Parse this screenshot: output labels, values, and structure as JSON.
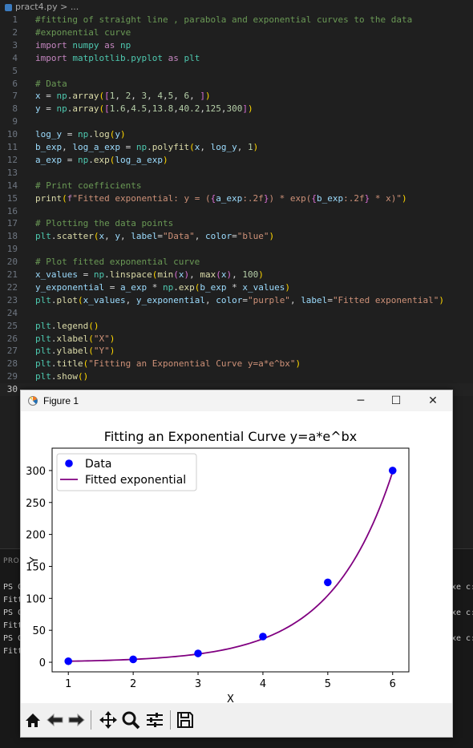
{
  "breadcrumb": {
    "file": "pract4.py",
    "sep": " > ",
    "rest": "..."
  },
  "editor": {
    "active_line": 30,
    "lines": [
      [
        [
          "cm",
          "#fitting of straight line , parabola and exponential curves to the data"
        ]
      ],
      [
        [
          "cm",
          "#exponential curve"
        ]
      ],
      [
        [
          "kw",
          "import "
        ],
        [
          "cls",
          "numpy"
        ],
        [
          "kw",
          " as "
        ],
        [
          "cls",
          "np"
        ]
      ],
      [
        [
          "kw",
          "import "
        ],
        [
          "cls",
          "matplotlib.pyplot"
        ],
        [
          "kw",
          " as "
        ],
        [
          "cls",
          "plt"
        ]
      ],
      [],
      [
        [
          "cm",
          "# Data"
        ]
      ],
      [
        [
          "id",
          "x"
        ],
        [
          "op",
          " = "
        ],
        [
          "cls",
          "np"
        ],
        [
          "op",
          "."
        ],
        [
          "fn",
          "array"
        ],
        [
          "br",
          "("
        ],
        [
          "br2",
          "["
        ],
        [
          "num",
          "1"
        ],
        [
          "op",
          ", "
        ],
        [
          "num",
          "2"
        ],
        [
          "op",
          ", "
        ],
        [
          "num",
          "3"
        ],
        [
          "op",
          ", "
        ],
        [
          "num",
          "4"
        ],
        [
          "op",
          ","
        ],
        [
          "num",
          "5"
        ],
        [
          "op",
          ", "
        ],
        [
          "num",
          "6"
        ],
        [
          "op",
          ", "
        ],
        [
          "br2",
          "]"
        ],
        [
          "br",
          ")"
        ]
      ],
      [
        [
          "id",
          "y"
        ],
        [
          "op",
          " = "
        ],
        [
          "cls",
          "np"
        ],
        [
          "op",
          "."
        ],
        [
          "fn",
          "array"
        ],
        [
          "br",
          "("
        ],
        [
          "br2",
          "["
        ],
        [
          "num",
          "1.6"
        ],
        [
          "op",
          ","
        ],
        [
          "num",
          "4.5"
        ],
        [
          "op",
          ","
        ],
        [
          "num",
          "13.8"
        ],
        [
          "op",
          ","
        ],
        [
          "num",
          "40.2"
        ],
        [
          "op",
          ","
        ],
        [
          "num",
          "125"
        ],
        [
          "op",
          ","
        ],
        [
          "num",
          "300"
        ],
        [
          "br2",
          "]"
        ],
        [
          "br",
          ")"
        ]
      ],
      [],
      [
        [
          "id",
          "log_y"
        ],
        [
          "op",
          " = "
        ],
        [
          "cls",
          "np"
        ],
        [
          "op",
          "."
        ],
        [
          "fn",
          "log"
        ],
        [
          "br",
          "("
        ],
        [
          "id",
          "y"
        ],
        [
          "br",
          ")"
        ]
      ],
      [
        [
          "id",
          "b_exp"
        ],
        [
          "op",
          ", "
        ],
        [
          "id",
          "log_a_exp"
        ],
        [
          "op",
          " = "
        ],
        [
          "cls",
          "np"
        ],
        [
          "op",
          "."
        ],
        [
          "fn",
          "polyfit"
        ],
        [
          "br",
          "("
        ],
        [
          "id",
          "x"
        ],
        [
          "op",
          ", "
        ],
        [
          "id",
          "log_y"
        ],
        [
          "op",
          ", "
        ],
        [
          "num",
          "1"
        ],
        [
          "br",
          ")"
        ]
      ],
      [
        [
          "id",
          "a_exp"
        ],
        [
          "op",
          " = "
        ],
        [
          "cls",
          "np"
        ],
        [
          "op",
          "."
        ],
        [
          "fn",
          "exp"
        ],
        [
          "br",
          "("
        ],
        [
          "id",
          "log_a_exp"
        ],
        [
          "br",
          ")"
        ]
      ],
      [],
      [
        [
          "cm",
          "# Print coefficients"
        ]
      ],
      [
        [
          "fn",
          "print"
        ],
        [
          "br",
          "("
        ],
        [
          "kw",
          "f"
        ],
        [
          "str",
          "\"Fitted exponential: y = ("
        ],
        [
          "br2",
          "{"
        ],
        [
          "id",
          "a_exp"
        ],
        [
          "str",
          ":.2f"
        ],
        [
          "br2",
          "}"
        ],
        [
          "str",
          ") * exp("
        ],
        [
          "br2",
          "{"
        ],
        [
          "id",
          "b_exp"
        ],
        [
          "str",
          ":.2f"
        ],
        [
          "br2",
          "}"
        ],
        [
          "str",
          " * x)\""
        ],
        [
          "br",
          ")"
        ]
      ],
      [],
      [
        [
          "cm",
          "# Plotting the data points"
        ]
      ],
      [
        [
          "cls",
          "plt"
        ],
        [
          "op",
          "."
        ],
        [
          "fn",
          "scatter"
        ],
        [
          "br",
          "("
        ],
        [
          "id",
          "x"
        ],
        [
          "op",
          ", "
        ],
        [
          "id",
          "y"
        ],
        [
          "op",
          ", "
        ],
        [
          "id",
          "label"
        ],
        [
          "op",
          "="
        ],
        [
          "str",
          "\"Data\""
        ],
        [
          "op",
          ", "
        ],
        [
          "id",
          "color"
        ],
        [
          "op",
          "="
        ],
        [
          "str",
          "\"blue\""
        ],
        [
          "br",
          ")"
        ]
      ],
      [],
      [
        [
          "cm",
          "# Plot fitted exponential curve"
        ]
      ],
      [
        [
          "id",
          "x_values"
        ],
        [
          "op",
          " = "
        ],
        [
          "cls",
          "np"
        ],
        [
          "op",
          "."
        ],
        [
          "fn",
          "linspace"
        ],
        [
          "br",
          "("
        ],
        [
          "fn",
          "min"
        ],
        [
          "br2",
          "("
        ],
        [
          "id",
          "x"
        ],
        [
          "br2",
          ")"
        ],
        [
          "op",
          ", "
        ],
        [
          "fn",
          "max"
        ],
        [
          "br2",
          "("
        ],
        [
          "id",
          "x"
        ],
        [
          "br2",
          ")"
        ],
        [
          "op",
          ", "
        ],
        [
          "num",
          "100"
        ],
        [
          "br",
          ")"
        ]
      ],
      [
        [
          "id",
          "y_exponential"
        ],
        [
          "op",
          " = "
        ],
        [
          "id",
          "a_exp"
        ],
        [
          "op",
          " * "
        ],
        [
          "cls",
          "np"
        ],
        [
          "op",
          "."
        ],
        [
          "fn",
          "exp"
        ],
        [
          "br",
          "("
        ],
        [
          "id",
          "b_exp"
        ],
        [
          "op",
          " * "
        ],
        [
          "id",
          "x_values"
        ],
        [
          "br",
          ")"
        ]
      ],
      [
        [
          "cls",
          "plt"
        ],
        [
          "op",
          "."
        ],
        [
          "fn",
          "plot"
        ],
        [
          "br",
          "("
        ],
        [
          "id",
          "x_values"
        ],
        [
          "op",
          ", "
        ],
        [
          "id",
          "y_exponential"
        ],
        [
          "op",
          ", "
        ],
        [
          "id",
          "color"
        ],
        [
          "op",
          "="
        ],
        [
          "str",
          "\"purple\""
        ],
        [
          "op",
          ", "
        ],
        [
          "id",
          "label"
        ],
        [
          "op",
          "="
        ],
        [
          "str",
          "\"Fitted exponential\""
        ],
        [
          "br",
          ")"
        ]
      ],
      [],
      [
        [
          "cls",
          "plt"
        ],
        [
          "op",
          "."
        ],
        [
          "fn",
          "legend"
        ],
        [
          "br",
          "()"
        ]
      ],
      [
        [
          "cls",
          "plt"
        ],
        [
          "op",
          "."
        ],
        [
          "fn",
          "xlabel"
        ],
        [
          "br",
          "("
        ],
        [
          "str",
          "\"X\""
        ],
        [
          "br",
          ")"
        ]
      ],
      [
        [
          "cls",
          "plt"
        ],
        [
          "op",
          "."
        ],
        [
          "fn",
          "ylabel"
        ],
        [
          "br",
          "("
        ],
        [
          "str",
          "\"Y\""
        ],
        [
          "br",
          ")"
        ]
      ],
      [
        [
          "cls",
          "plt"
        ],
        [
          "op",
          "."
        ],
        [
          "fn",
          "title"
        ],
        [
          "br",
          "("
        ],
        [
          "str",
          "\"Fitting an Exponential Curve y=a*e^bx\""
        ],
        [
          "br",
          ")"
        ]
      ],
      [
        [
          "cls",
          "plt"
        ],
        [
          "op",
          "."
        ],
        [
          "fn",
          "show"
        ],
        [
          "br",
          "()"
        ]
      ],
      []
    ]
  },
  "panel": {
    "tab": "PROB",
    "terminal_left": [
      "PS C",
      "Fitt",
      "PS C",
      "Fitt",
      "PS C",
      "Fitt"
    ],
    "terminal_right": [
      "xe c:",
      "xe c:",
      "xe c:"
    ]
  },
  "figure_window": {
    "title": "Figure 1",
    "minimize": "─",
    "maximize": "☐",
    "close": "✕"
  },
  "toolbar": {
    "home": "home-icon",
    "back": "back-arrow-icon",
    "forward": "forward-arrow-icon",
    "pan": "pan-icon",
    "zoom": "zoom-icon",
    "configure": "configure-subplots-icon",
    "save": "save-icon"
  },
  "chart_data": {
    "type": "scatter",
    "title": "Fitting an Exponential Curve y=a*e^bx",
    "xlabel": "X",
    "ylabel": "Y",
    "xlim": [
      0.75,
      6.25
    ],
    "ylim": [
      -15,
      335
    ],
    "xticks": [
      1,
      2,
      3,
      4,
      5,
      6
    ],
    "yticks": [
      0,
      50,
      100,
      150,
      200,
      250,
      300
    ],
    "grid": false,
    "legend_position": "upper-left",
    "series": [
      {
        "name": "Data",
        "kind": "scatter",
        "color": "#0000ff",
        "x": [
          1,
          2,
          3,
          4,
          5,
          6
        ],
        "y": [
          1.6,
          4.5,
          13.8,
          40.2,
          125,
          300
        ]
      },
      {
        "name": "Fitted exponential",
        "kind": "line",
        "color": "#800080",
        "a": 0.557,
        "b": 1.047,
        "x_range": [
          1,
          6
        ]
      }
    ]
  }
}
